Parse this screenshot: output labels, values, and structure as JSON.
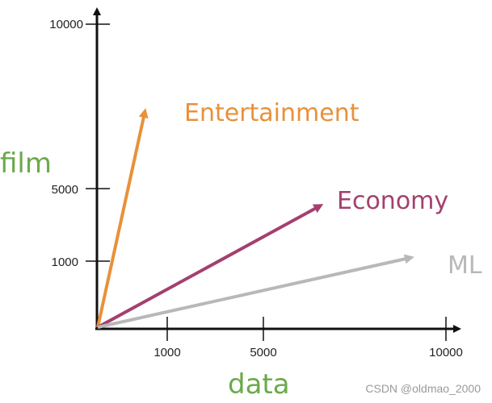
{
  "axes": {
    "x_title": "data",
    "y_title": "film",
    "x_title_color": "#6aaa4a",
    "y_title_color": "#6aaa4a",
    "x_ticks": [
      "1000",
      "5000",
      "10000"
    ],
    "y_ticks": [
      "10000",
      "5000",
      "1000"
    ]
  },
  "vectors": [
    {
      "label": "Entertainment",
      "color": "#e8913a"
    },
    {
      "label": "Economy",
      "color": "#a3406f"
    },
    {
      "label": "ML",
      "color": "#b8b8b8"
    }
  ],
  "watermark": "CSDN @oldmao_2000"
}
